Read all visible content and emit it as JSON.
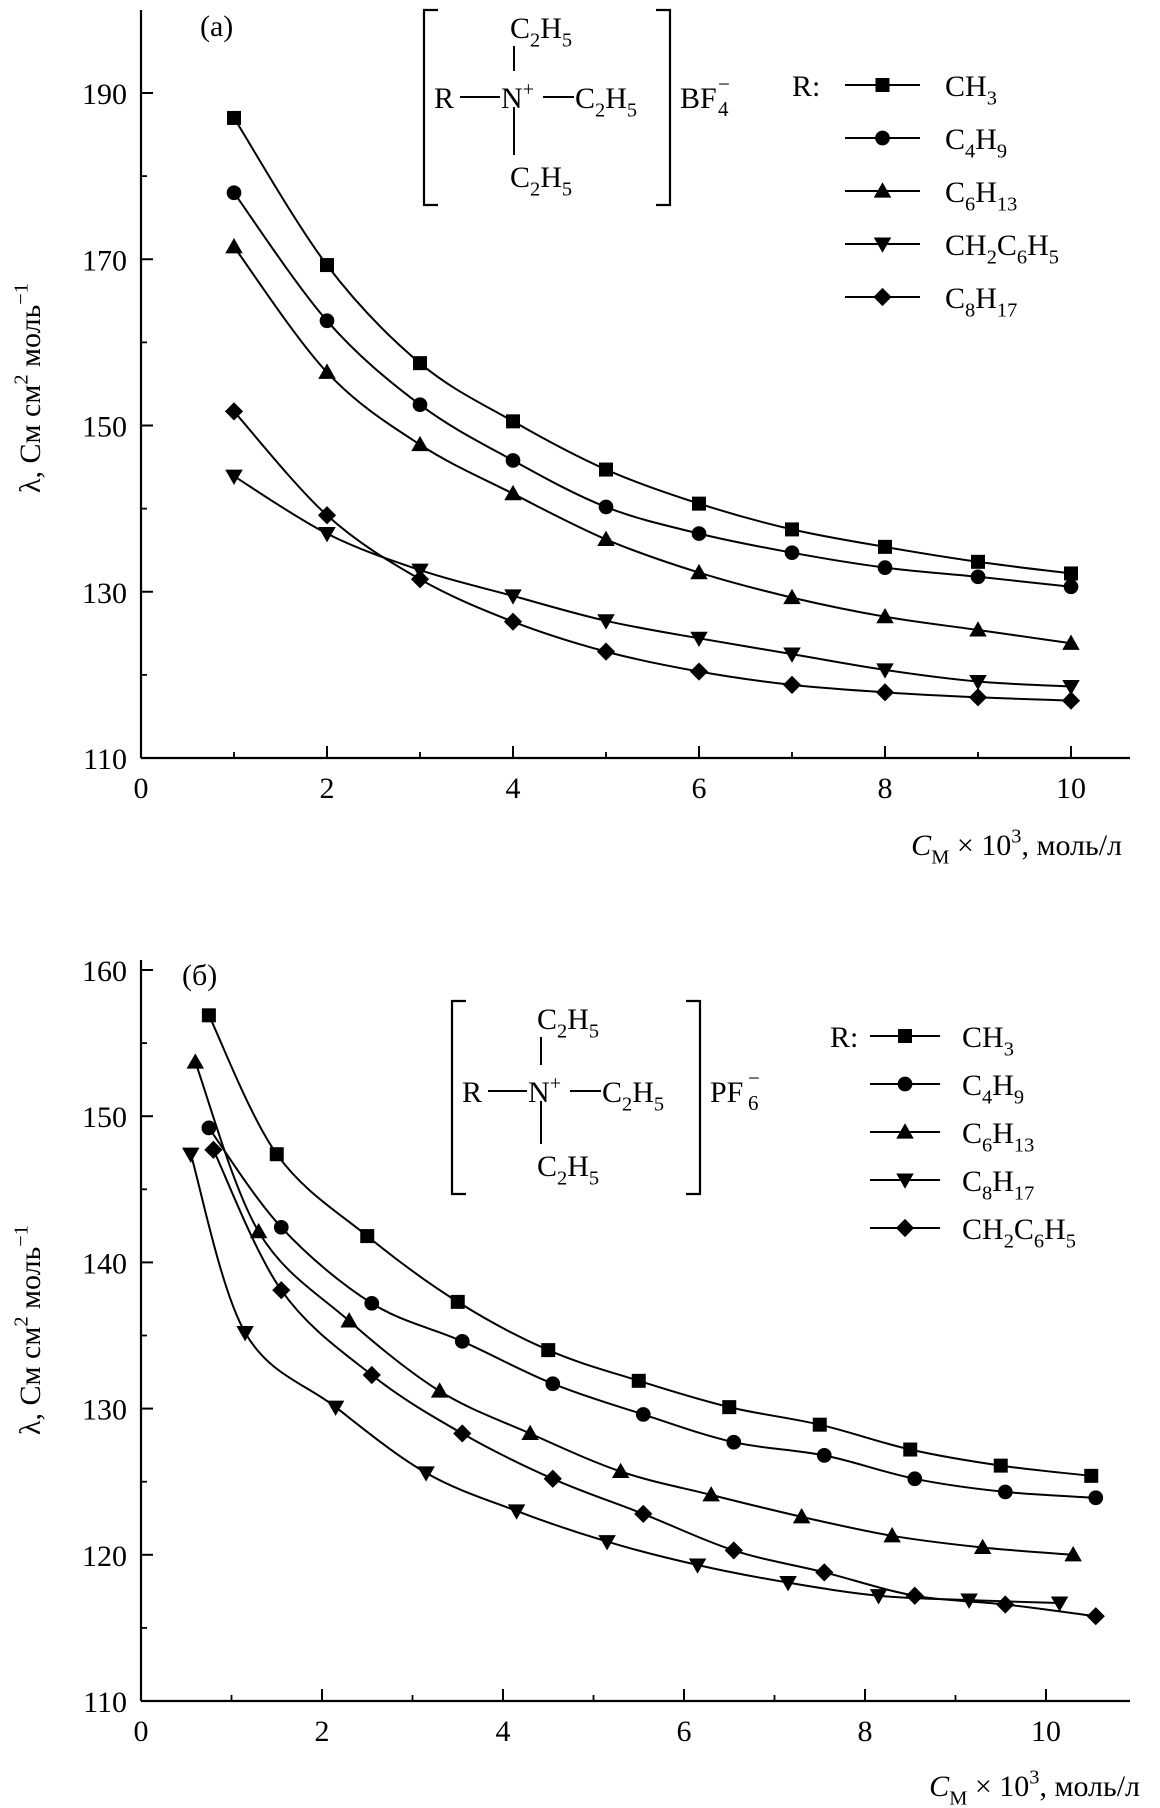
{
  "chart_data": [
    {
      "type": "line",
      "panel_label": "(а)",
      "anion": "BF",
      "anion_sub": "4",
      "anion_charge": "−",
      "formula": {
        "R": "R",
        "N": "N",
        "charge": "+",
        "C": "C",
        "two": "2",
        "H": "H",
        "five": "5"
      },
      "legend_title": "R:",
      "xlabel": {
        "C": "C",
        "sub": "М",
        "rest": " × 10",
        "sup": "3",
        "units": ", моль/л"
      },
      "ylabel": {
        "pre": "λ, См см",
        "sup": "2",
        "mid": " моль",
        "sup2": "−1"
      },
      "xlim": [
        0,
        11
      ],
      "ylim": [
        110,
        200
      ],
      "xticks": [
        0,
        2,
        4,
        6,
        8,
        10
      ],
      "xtick_labels": [
        "0",
        "2",
        "4",
        "6",
        "8",
        "10"
      ],
      "yticks": [
        110,
        130,
        150,
        170,
        190
      ],
      "ytick_labels": [
        "110",
        "130",
        "150",
        "170",
        "190"
      ],
      "series": [
        {
          "name": [
            [
              "CH",
              ""
            ],
            [
              "3",
              "sub"
            ]
          ],
          "marker": "square",
          "x": [
            1,
            2,
            3,
            4,
            5,
            6,
            7,
            8,
            9,
            10
          ],
          "y": [
            187,
            169.3,
            157.5,
            150.5,
            144.7,
            140.6,
            137.5,
            135.4,
            133.6,
            132.2
          ]
        },
        {
          "name": [
            [
              "C",
              ""
            ],
            [
              "4",
              "sub"
            ],
            [
              "H",
              ""
            ],
            [
              "9",
              "sub"
            ]
          ],
          "marker": "circle",
          "x": [
            1,
            2,
            3,
            4,
            5,
            6,
            7,
            8,
            9,
            10
          ],
          "y": [
            178,
            162.6,
            152.5,
            145.8,
            140.2,
            137,
            134.7,
            132.9,
            131.8,
            130.6
          ]
        },
        {
          "name": [
            [
              "C",
              ""
            ],
            [
              "6",
              "sub"
            ],
            [
              "H",
              ""
            ],
            [
              "13",
              "sub"
            ]
          ],
          "marker": "triangle-up",
          "x": [
            1,
            2,
            3,
            4,
            5,
            6,
            7,
            8,
            9,
            10
          ],
          "y": [
            171.5,
            156.4,
            147.7,
            141.8,
            136.3,
            132.3,
            129.3,
            127,
            125.4,
            123.8
          ]
        },
        {
          "name": [
            [
              "CH",
              ""
            ],
            [
              "2",
              "sub"
            ],
            [
              "C",
              ""
            ],
            [
              "6",
              "sub"
            ],
            [
              "H",
              ""
            ],
            [
              "5",
              "sub"
            ]
          ],
          "marker": "triangle-down",
          "x": [
            1,
            2,
            3,
            4,
            5,
            6,
            7,
            8,
            9,
            10
          ],
          "y": [
            143.9,
            137,
            132.6,
            129.5,
            126.5,
            124.4,
            122.5,
            120.6,
            119.2,
            118.6
          ]
        },
        {
          "name": [
            [
              "C",
              ""
            ],
            [
              "8",
              "sub"
            ],
            [
              "H",
              ""
            ],
            [
              "17",
              "sub"
            ]
          ],
          "marker": "diamond",
          "x": [
            1,
            2,
            3,
            4,
            5,
            6,
            7,
            8,
            9,
            10
          ],
          "y": [
            151.7,
            139.2,
            131.5,
            126.4,
            122.8,
            120.4,
            118.8,
            117.9,
            117.3,
            116.9
          ]
        }
      ]
    },
    {
      "type": "line",
      "panel_label": "(б)",
      "anion": "PF",
      "anion_sub": "6",
      "anion_charge": "−",
      "formula": {
        "R": "R",
        "N": "N",
        "charge": "+",
        "C": "C",
        "two": "2",
        "H": "H",
        "five": "5"
      },
      "legend_title": "R:",
      "xlabel": {
        "C": "C",
        "sub": "М",
        "rest": " × 10",
        "sup": "3",
        "units": ", моль/л"
      },
      "ylabel": {
        "pre": "λ, См см",
        "sup": "2",
        "mid": " моль",
        "sup2": "−1"
      },
      "xlim": [
        0,
        11
      ],
      "ylim": [
        110,
        160
      ],
      "xticks": [
        0,
        2,
        4,
        6,
        8,
        10
      ],
      "xtick_labels": [
        "0",
        "2",
        "4",
        "6",
        "8",
        "10"
      ],
      "yticks": [
        110,
        120,
        130,
        140,
        150,
        160
      ],
      "ytick_labels": [
        "110",
        "120",
        "130",
        "140",
        "150",
        "160"
      ],
      "series": [
        {
          "name": [
            [
              "CH",
              ""
            ],
            [
              "3",
              "sub"
            ]
          ],
          "marker": "square",
          "x": [
            0.75,
            1.5,
            2.5,
            3.5,
            4.5,
            5.5,
            6.5,
            7.5,
            8.5,
            9.5,
            10.5
          ],
          "y": [
            156.9,
            147.4,
            141.8,
            137.3,
            134,
            131.9,
            130.1,
            128.9,
            127.2,
            126.1,
            125.4
          ]
        },
        {
          "name": [
            [
              "C",
              ""
            ],
            [
              "4",
              "sub"
            ],
            [
              "H",
              ""
            ],
            [
              "9",
              "sub"
            ]
          ],
          "marker": "circle",
          "x": [
            0.75,
            1.55,
            2.55,
            3.55,
            4.55,
            5.55,
            6.55,
            7.55,
            8.55,
            9.55,
            10.55
          ],
          "y": [
            149.2,
            142.4,
            137.2,
            134.6,
            131.7,
            129.6,
            127.7,
            126.8,
            125.2,
            124.3,
            123.9
          ]
        },
        {
          "name": [
            [
              "C",
              ""
            ],
            [
              "6",
              "sub"
            ],
            [
              "H",
              ""
            ],
            [
              "13",
              "sub"
            ]
          ],
          "marker": "triangle-up",
          "x": [
            0.6,
            1.3,
            2.3,
            3.3,
            4.3,
            5.3,
            6.3,
            7.3,
            8.3,
            9.3,
            10.3
          ],
          "y": [
            153.7,
            142.1,
            136,
            131.2,
            128.3,
            125.7,
            124.1,
            122.6,
            121.3,
            120.5,
            120
          ]
        },
        {
          "name": [
            [
              "C",
              ""
            ],
            [
              "8",
              "sub"
            ],
            [
              "H",
              ""
            ],
            [
              "17",
              "sub"
            ]
          ],
          "marker": "triangle-down",
          "x": [
            0.55,
            1.15,
            2.15,
            3.15,
            4.15,
            5.15,
            6.15,
            7.15,
            8.15,
            9.15,
            10.15
          ],
          "y": [
            147.4,
            135.2,
            130.1,
            125.6,
            123,
            120.9,
            119.3,
            118.1,
            117.2,
            116.9,
            116.7
          ]
        },
        {
          "name": [
            [
              "CH",
              ""
            ],
            [
              "2",
              "sub"
            ],
            [
              "C",
              ""
            ],
            [
              "6",
              "sub"
            ],
            [
              "H",
              ""
            ],
            [
              "5",
              "sub"
            ]
          ],
          "marker": "diamond",
          "x": [
            0.8,
            1.55,
            2.55,
            3.55,
            4.55,
            5.55,
            6.55,
            7.55,
            8.55,
            9.55,
            10.55
          ],
          "y": [
            147.7,
            138.1,
            132.3,
            128.3,
            125.2,
            122.8,
            120.3,
            118.8,
            117.2,
            116.6,
            115.8
          ]
        }
      ]
    }
  ]
}
